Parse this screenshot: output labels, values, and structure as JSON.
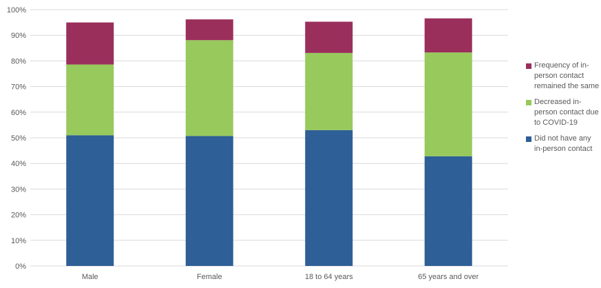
{
  "colors": {
    "did_not_have": "#2e5f96",
    "decreased": "#97c95c",
    "remained_same": "#9b2f5c",
    "grid": "#d9d9d9",
    "text": "#595959"
  },
  "chart_data": {
    "type": "bar",
    "stacked": true,
    "categories": [
      "Male",
      "Female",
      "18 to 64 years",
      "65 years and over"
    ],
    "series": [
      {
        "name": "Did not have any in-person contact",
        "color": "#2e5f96",
        "values": [
          51,
          50.7,
          53,
          42.8
        ]
      },
      {
        "name": "Decreased in-person contact due to COVID-19",
        "color": "#97c95c",
        "values": [
          27.6,
          37.4,
          30.1,
          40.5
        ]
      },
      {
        "name": "Frequency of in-person contact remained the same",
        "color": "#9b2f5c",
        "values": [
          16.4,
          8.1,
          12.2,
          13.3
        ]
      }
    ],
    "y_ticks": [
      "0%",
      "10%",
      "20%",
      "30%",
      "40%",
      "50%",
      "60%",
      "70%",
      "80%",
      "90%",
      "100%"
    ],
    "ylim": [
      0,
      100
    ],
    "grid": true,
    "legend_position": "right",
    "legend": [
      {
        "label": "Frequency of in-person contact remained the same",
        "color": "#9b2f5c"
      },
      {
        "label": "Decreased in-person contact due to COVID-19",
        "color": "#97c95c"
      },
      {
        "label": "Did not have any in-person contact",
        "color": "#2e5f96"
      }
    ]
  }
}
